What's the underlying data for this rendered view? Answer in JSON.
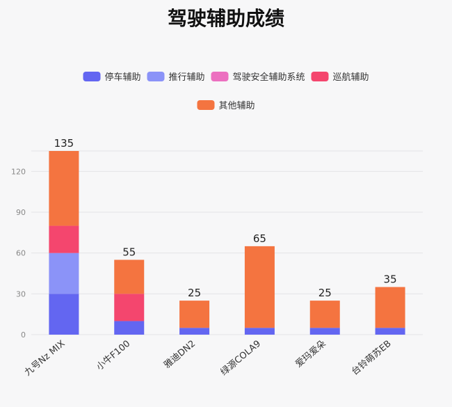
{
  "chart_data": {
    "type": "bar",
    "stacked": true,
    "title": "驾驶辅助成绩",
    "xlabel": "",
    "ylabel": "",
    "ylim": [
      0,
      135
    ],
    "yticks": [
      0,
      30,
      60,
      90,
      120
    ],
    "grid": true,
    "legend_position": "top",
    "categories": [
      "九号Nz MIX",
      "小牛F100",
      "雅迪DN2",
      "绿源COLA9",
      "爱玛爱朵",
      "台铃萌苏EB"
    ],
    "series": [
      {
        "name": "停车辅助",
        "color": "#6366f1",
        "values": [
          30,
          10,
          5,
          5,
          5,
          5
        ]
      },
      {
        "name": "推行辅助",
        "color": "#8b93f8",
        "values": [
          30,
          0,
          0,
          0,
          0,
          0
        ]
      },
      {
        "name": "驾驶安全辅助系统",
        "color": "#ec70c0",
        "values": [
          0,
          0,
          0,
          0,
          0,
          0
        ]
      },
      {
        "name": "巡航辅助",
        "color": "#f4466e",
        "values": [
          20,
          20,
          0,
          0,
          0,
          0
        ]
      },
      {
        "name": "其他辅助",
        "color": "#f47440",
        "values": [
          55,
          25,
          20,
          60,
          20,
          30
        ]
      }
    ],
    "totals": [
      135,
      55,
      25,
      65,
      25,
      35
    ]
  }
}
